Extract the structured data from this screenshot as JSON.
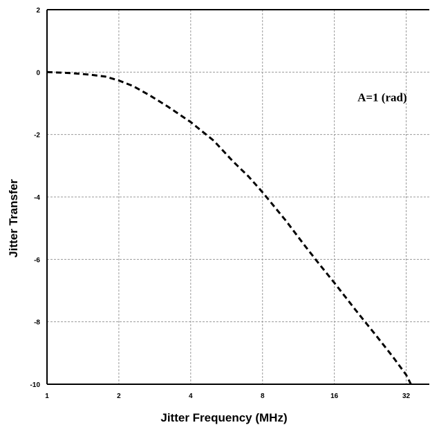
{
  "chart_data": {
    "type": "line",
    "title": "",
    "xlabel": "Jitter Frequency (MHz)",
    "ylabel": "Jitter Transfer",
    "x_scale": "log2",
    "xlim": [
      1,
      40
    ],
    "ylim": [
      -10,
      2
    ],
    "x_ticks": [
      1,
      2,
      4,
      8,
      16,
      32
    ],
    "x_tick_labels": [
      "1",
      "2",
      "4",
      "8",
      "16",
      "32"
    ],
    "y_ticks": [
      2,
      0,
      -2,
      -4,
      -6,
      -8,
      -10
    ],
    "y_tick_labels": [
      "2",
      "0",
      "-2",
      "-4",
      "-6",
      "-8",
      "-10"
    ],
    "grid": true,
    "annotations": [
      {
        "text": "A=1 (rad)",
        "x": 20,
        "y": -0.8
      }
    ],
    "series": [
      {
        "style": "dashed",
        "color": "#000000",
        "x": [
          1,
          1.25,
          1.5,
          1.75,
          2,
          2.3,
          2.7,
          3.2,
          4,
          5,
          6,
          7,
          8,
          10,
          12,
          14,
          16,
          20,
          24,
          28,
          32,
          33.5
        ],
        "y": [
          0,
          -0.03,
          -0.08,
          -0.14,
          -0.27,
          -0.45,
          -0.75,
          -1.1,
          -1.6,
          -2.2,
          -2.85,
          -3.35,
          -3.85,
          -4.75,
          -5.55,
          -6.2,
          -6.75,
          -7.7,
          -8.45,
          -9.1,
          -9.7,
          -10
        ]
      }
    ]
  },
  "axis_titles": {
    "x": "Jitter Frequency (MHz)",
    "y": "Jitter Transfer"
  },
  "annotation_text": "A=1 (rad)"
}
